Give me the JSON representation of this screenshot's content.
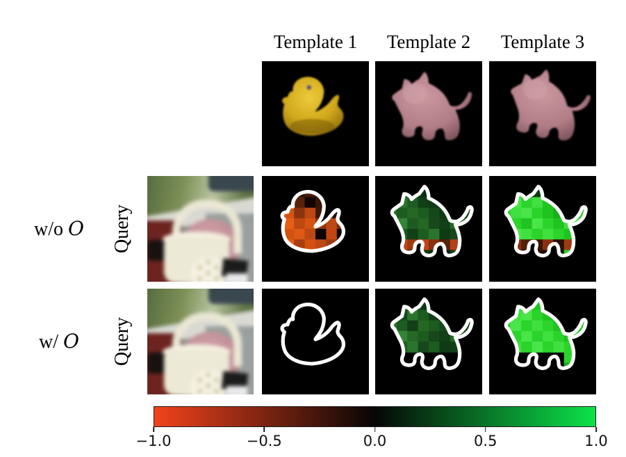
{
  "columns": [
    "Template 1",
    "Template 2",
    "Template 3"
  ],
  "row_labels": [
    {
      "prefix": "w/o",
      "symbol": "O",
      "side_label": "Query"
    },
    {
      "prefix": "w/",
      "symbol": "O",
      "side_label": "Query"
    }
  ],
  "colorbar": {
    "tick_labels": [
      "−1.0",
      "−0.5",
      "0.0",
      "0.5",
      "1.0"
    ],
    "min_color": "#f2421c",
    "mid_color": "#060606",
    "max_color": "#0ce24a"
  },
  "images": {
    "template_1": "yellow rubber duck render on black",
    "template_2": "pink cat figurine render on black",
    "template_3": "pink cat figurine render, rotated view, on black",
    "query": "blurred photo: white basket with handle, pink object behind"
  },
  "chart_data": {
    "type": "heatmap",
    "colorbar": {
      "ticks": [
        -1.0,
        -0.5,
        0.0,
        0.5,
        1.0
      ],
      "range": [
        -1.0,
        1.0
      ],
      "orientation": "horizontal",
      "colormap": "red-black-green"
    },
    "grid_size": [
      10,
      10
    ],
    "heatmaps": {
      "r1t1": [
        [
          "#120602",
          "#1c0a03",
          "#160803",
          "#240e05",
          "#1c0a03",
          "#120602",
          "#1a0a04",
          "#140703",
          "#1c0a03",
          "#120602"
        ],
        [
          "#1c0a03",
          "#3a1606",
          "#5a2208",
          "#2e1205",
          "#451a07",
          "#241006",
          "#160803",
          "#1c0a03",
          "#140703",
          "#120602"
        ],
        [
          "#2e1205",
          "#7c2e0c",
          "#c04712",
          "#58220a",
          "#100502",
          "#381505",
          "#1c0a03",
          "#241006",
          "#160803",
          "#140703"
        ],
        [
          "#451a07",
          "#9c3a0e",
          "#d65312",
          "#8a340d",
          "#bc4814",
          "#401806",
          "#241006",
          "#1c0a03",
          "#241006",
          "#160803"
        ],
        [
          "#672809",
          "#d65312",
          "#e65e14",
          "#bc4814",
          "#d65312",
          "#8e360d",
          "#bc4814",
          "#7c2e0c",
          "#451a07",
          "#241006"
        ],
        [
          "#7c2e0c",
          "#e65e14",
          "#d25010",
          "#dc5a16",
          "#bc4814",
          "#0e0402",
          "#c04712",
          "#0a0301",
          "#8e360d",
          "#2e1205"
        ],
        [
          "#58220a",
          "#bc4814",
          "#e65e14",
          "#a83e10",
          "#d25010",
          "#bc4814",
          "#9c3a0e",
          "#7c2e0c",
          "#672809",
          "#241006"
        ],
        [
          "#2e1205",
          "#7c2e0c",
          "#9c3a0e",
          "#8e360d",
          "#7c2e0c",
          "#672809",
          "#451a07",
          "#3a1606",
          "#2e1205",
          "#160803"
        ],
        [
          "#180a04",
          "#241006",
          "#2e1205",
          "#241006",
          "#1c0a03",
          "#180a04",
          "#1c0a03",
          "#140703",
          "#160803",
          "#0e0502"
        ],
        [
          "#0c0401",
          "#120602",
          "#0e0502",
          "#120602",
          "#0c0401",
          "#0e0502",
          "#0a0301",
          "#0c0401",
          "#0e0502",
          "#0a0301"
        ]
      ],
      "r1t2": [
        [
          "#02130a",
          "#03180c",
          "#02130a",
          "#041d0e",
          "#03180c",
          "#02130a",
          "#03180c",
          "#02130a",
          "#041d0e",
          "#02130a"
        ],
        [
          "#03180c",
          "#0a2f12",
          "#123f18",
          "#0e3a14",
          "#0a2f12",
          "#061f0e",
          "#041d0e",
          "#03180c",
          "#02130a",
          "#03180c"
        ],
        [
          "#061f0e",
          "#16481c",
          "#2a752c",
          "#1d5c20",
          "#123f18",
          "#0e3a14",
          "#061f0e",
          "#041d0e",
          "#0a2f12",
          "#02130a"
        ],
        [
          "#0a2f12",
          "#2a752c",
          "#1d5c20",
          "#246824",
          "#1d5c20",
          "#16481c",
          "#0e3a14",
          "#1d5c20",
          "#123f18",
          "#03180c"
        ],
        [
          "#0e3a14",
          "#1d5c20",
          "#338338",
          "#1d5c20",
          "#246824",
          "#16481c",
          "#123f18",
          "#246824",
          "#1d5c20",
          "#041d0e"
        ],
        [
          "#0a2f12",
          "#246824",
          "#1d5c20",
          "#123f18",
          "#1d5c20",
          "#2a752c",
          "#0e3a14",
          "#16481c",
          "#0a2f12",
          "#03180c"
        ],
        [
          "#041d0e",
          "#8a2f10",
          "#c2431a",
          "#9c3a12",
          "#c2431a",
          "#8a2f10",
          "#58220a",
          "#b44016",
          "#123f18",
          "#02130a"
        ],
        [
          "#03180c",
          "#0a2f12",
          "#123f18",
          "#061f0e",
          "#0e3a14",
          "#0a2f12",
          "#061f0e",
          "#0e3a14",
          "#0a2f12",
          "#02130a"
        ],
        [
          "#02130a",
          "#041d0e",
          "#061f0e",
          "#03180c",
          "#041d0e",
          "#03180c",
          "#041d0e",
          "#061f0e",
          "#03180c",
          "#02130a"
        ],
        [
          "#020f08",
          "#02130a",
          "#03180c",
          "#02130a",
          "#020f08",
          "#02130a",
          "#020f08",
          "#03180c",
          "#02130a",
          "#020f08"
        ]
      ],
      "r1t3": [
        [
          "#031708",
          "#041d0a",
          "#031708",
          "#05230c",
          "#041d0a",
          "#031708",
          "#041d0a",
          "#031708",
          "#05230c",
          "#031708"
        ],
        [
          "#05230c",
          "#17b019",
          "#2bd32b",
          "#1fc41f",
          "#0e3a14",
          "#08340e",
          "#05230c",
          "#041d0a",
          "#031708",
          "#041d0a"
        ],
        [
          "#0a120a",
          "#060f06",
          "#49e549",
          "#2bd32b",
          "#3fe03f",
          "#1fc41f",
          "#0e3a14",
          "#08340e",
          "#05230c",
          "#031708"
        ],
        [
          "#08340e",
          "#2bd32b",
          "#3fe03f",
          "#49e549",
          "#2bd32b",
          "#1fc41f",
          "#17b019",
          "#2bd32b",
          "#1fc41f",
          "#041d0a"
        ],
        [
          "#0e3a14",
          "#3fe03f",
          "#2bd32b",
          "#1fc41f",
          "#49e549",
          "#2bd32b",
          "#1fc41f",
          "#3fe03f",
          "#2bd32b",
          "#05230c"
        ],
        [
          "#08340e",
          "#2bd32b",
          "#49e549",
          "#3fe03f",
          "#2bd32b",
          "#3fe03f",
          "#2bd32b",
          "#1fc41f",
          "#17b019",
          "#041d0a"
        ],
        [
          "#041d0a",
          "#6e2a0c",
          "#8a2f10",
          "#51200a",
          "#3d1405",
          "#8a2f10",
          "#2a1006",
          "#9c3a12",
          "#2bd32b",
          "#031708"
        ],
        [
          "#031708",
          "#0e0603",
          "#3d1405",
          "#1a0a04",
          "#2a1006",
          "#120703",
          "#051d0a",
          "#2bd32b",
          "#17b019",
          "#031708"
        ],
        [
          "#02130a",
          "#0a0503",
          "#1a0a04",
          "#0e0603",
          "#120703",
          "#0a0503",
          "#041d0a",
          "#08340e",
          "#05230c",
          "#020f08"
        ],
        [
          "#020c06",
          "#031708",
          "#041d0a",
          "#031708",
          "#020c06",
          "#031708",
          "#020c06",
          "#041d0a",
          "#031708",
          "#020c06"
        ]
      ],
      "r2t1": [],
      "r2t2": [
        [
          "#061f0e",
          "#0a2f12",
          "#0e3a14",
          "#0a2f12",
          "#061f0e",
          "#041d0e",
          "#03180c",
          "#041d0e",
          "#03180c",
          "#02130a"
        ],
        [
          "#0a2f12",
          "#123f18",
          "#2a752c",
          "#1d5c20",
          "#0e3a14",
          "#0a2f12",
          "#061f0e",
          "#041d0e",
          "#03180c",
          "#02130a"
        ],
        [
          "#0e3a14",
          "#1d5c20",
          "#16481c",
          "#2a752c",
          "#1d5c20",
          "#123f18",
          "#0a2f12",
          "#0e3a14",
          "#0a2f12",
          "#03180c"
        ],
        [
          "#123f18",
          "#2a752c",
          "#1d5c20",
          "#123f18",
          "#246824",
          "#1d5c20",
          "#16481c",
          "#1d5c20",
          "#123f18",
          "#041d0e"
        ],
        [
          "#0a2f12",
          "#1d5c20",
          "#338338",
          "#246824",
          "#1d5c20",
          "#16481c",
          "#123f18",
          "#246824",
          "#16481c",
          "#03180c"
        ],
        [
          "#0e3a14",
          "#246824",
          "#1d5c20",
          "#2a752c",
          "#16481c",
          "#1d5c20",
          "#0e3a14",
          "#123f18",
          "#0a2f12",
          "#02130a"
        ],
        [
          null,
          null,
          null,
          null,
          null,
          null,
          null,
          null,
          null,
          null
        ],
        [
          null,
          null,
          null,
          null,
          null,
          null,
          null,
          null,
          null,
          null
        ],
        [
          null,
          null,
          null,
          null,
          null,
          null,
          null,
          null,
          null,
          null
        ],
        [
          null,
          null,
          null,
          null,
          null,
          null,
          null,
          null,
          null,
          null
        ]
      ],
      "r2t3": [
        [
          "#05230c",
          "#08340e",
          "#0e3a14",
          "#08340e",
          "#05230c",
          "#041d0a",
          "#031708",
          "#041d0a",
          "#031708",
          "#020f08"
        ],
        [
          "#08340e",
          "#1fc41f",
          "#2bd32b",
          "#3fe03f",
          "#1fc41f",
          "#17b019",
          "#08340e",
          "#05230c",
          "#041d0a",
          "#031708"
        ],
        [
          "#081008",
          "#060f06",
          "#3fe03f",
          "#49e549",
          "#2bd32b",
          "#1fc41f",
          "#17b019",
          "#0e3a14",
          "#05230c",
          "#041d0a"
        ],
        [
          "#08340e",
          "#2bd32b",
          "#49e549",
          "#2bd32b",
          "#3fe03f",
          "#2bd32b",
          "#1fc41f",
          "#2bd32b",
          "#1fc41f",
          "#05230c"
        ],
        [
          "#0e3a14",
          "#3fe03f",
          "#2bd32b",
          "#49e549",
          "#2bd32b",
          "#3fe03f",
          "#2bd32b",
          "#1fc41f",
          "#2bd32b",
          "#08340e"
        ],
        [
          "#08340e",
          "#2bd32b",
          "#3fe03f",
          "#2bd32b",
          "#49e549",
          "#2bd32b",
          "#3fe03f",
          "#2bd32b",
          "#1fc41f",
          "#05230c"
        ],
        [
          null,
          null,
          null,
          null,
          null,
          null,
          null,
          "#2bd32b",
          "#1fc41f",
          null
        ],
        [
          null,
          null,
          null,
          null,
          null,
          null,
          null,
          "#17b019",
          null,
          null
        ],
        [
          null,
          null,
          null,
          null,
          null,
          null,
          null,
          null,
          null,
          null
        ],
        [
          null,
          null,
          null,
          null,
          null,
          null,
          null,
          null,
          null,
          null
        ]
      ]
    }
  }
}
